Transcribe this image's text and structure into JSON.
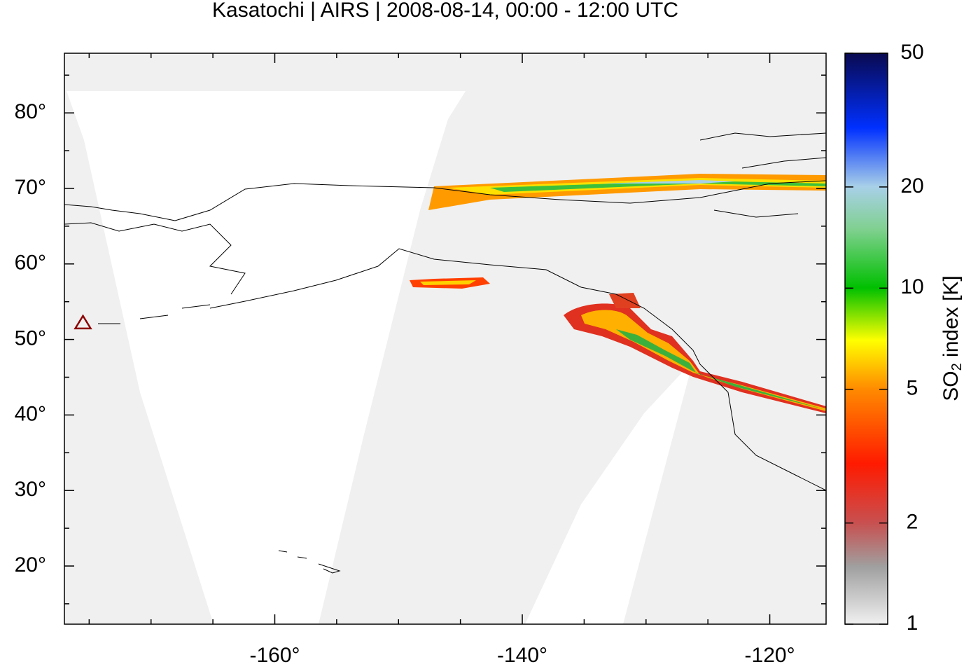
{
  "chart_data": {
    "type": "map",
    "title": "Kasatochi | AIRS | 2008-08-14, 00:00 - 12:00 UTC",
    "xlim": [
      -177,
      -115.45
    ],
    "ylim": [
      12.3,
      87.9
    ],
    "xticks": [
      {
        "value": -160,
        "label": "-160°"
      },
      {
        "value": -140,
        "label": "-140°"
      },
      {
        "value": -120,
        "label": "-120°"
      }
    ],
    "xminorticks": [
      -175,
      -170,
      -165,
      -155,
      -150,
      -145,
      -135,
      -130,
      -125
    ],
    "yticks": [
      {
        "value": 20,
        "label": "20°"
      },
      {
        "value": 30,
        "label": "30°"
      },
      {
        "value": 40,
        "label": "40°"
      },
      {
        "value": 50,
        "label": "50°"
      },
      {
        "value": 60,
        "label": "60°"
      },
      {
        "value": 70,
        "label": "70°"
      },
      {
        "value": 80,
        "label": "80°"
      }
    ],
    "yminorticks": [
      15,
      25,
      35,
      45,
      55,
      65,
      75,
      85
    ],
    "volcano": {
      "x": -175.5,
      "y": 52.2,
      "color": "#8b0000"
    },
    "colorbar": {
      "lim": [
        1,
        50
      ],
      "log": true,
      "ticks": [
        1,
        2,
        5,
        10,
        20,
        50
      ],
      "label": {
        "main": "SO",
        "sub": "2",
        "rest": " index [K]"
      }
    }
  }
}
